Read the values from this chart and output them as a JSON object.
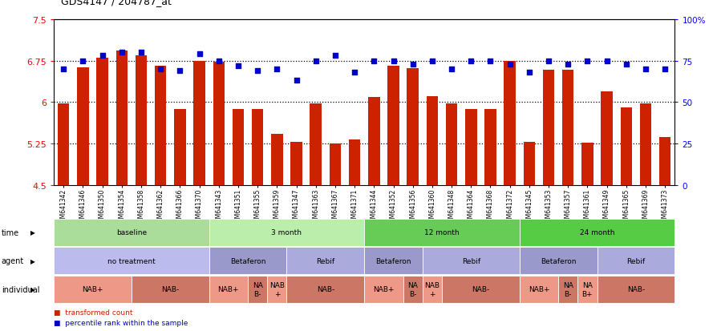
{
  "title": "GDS4147 / 204787_at",
  "samples": [
    "GSM641342",
    "GSM641346",
    "GSM641350",
    "GSM641354",
    "GSM641358",
    "GSM641362",
    "GSM641366",
    "GSM641370",
    "GSM641343",
    "GSM641351",
    "GSM641355",
    "GSM641359",
    "GSM641347",
    "GSM641363",
    "GSM641367",
    "GSM641371",
    "GSM641344",
    "GSM641352",
    "GSM641356",
    "GSM641360",
    "GSM641348",
    "GSM641364",
    "GSM641368",
    "GSM641372",
    "GSM641345",
    "GSM641353",
    "GSM641357",
    "GSM641361",
    "GSM641349",
    "GSM641365",
    "GSM641369",
    "GSM641373"
  ],
  "bar_values": [
    5.98,
    6.63,
    6.8,
    6.93,
    6.85,
    6.65,
    5.87,
    6.74,
    6.73,
    5.87,
    5.87,
    5.42,
    5.28,
    5.98,
    5.25,
    5.32,
    6.09,
    6.65,
    6.62,
    6.1,
    5.97,
    5.87,
    5.87,
    6.74,
    5.28,
    6.58,
    6.58,
    5.27,
    6.2,
    5.9,
    5.98,
    5.37
  ],
  "percentile_values": [
    70,
    75,
    78,
    80,
    80,
    70,
    69,
    79,
    75,
    72,
    69,
    70,
    63,
    75,
    78,
    68,
    75,
    75,
    73,
    75,
    70,
    75,
    75,
    73,
    68,
    75,
    73,
    75,
    75,
    73,
    70,
    70
  ],
  "ylim_left": [
    4.5,
    7.5
  ],
  "ylim_right": [
    0,
    100
  ],
  "yticks_left": [
    4.5,
    5.25,
    6.0,
    6.75,
    7.5
  ],
  "ytick_labels_left": [
    "4.5",
    "5.25",
    "6",
    "6.75",
    "7.5"
  ],
  "yticks_right": [
    0,
    25,
    50,
    75,
    100
  ],
  "ytick_labels_right": [
    "0",
    "25",
    "50",
    "75",
    "100%"
  ],
  "bar_color": "#cc2200",
  "dot_color": "#0000cc",
  "time_row": {
    "label": "time",
    "sections": [
      {
        "text": "baseline",
        "start": 0,
        "end": 8,
        "color": "#aadd99"
      },
      {
        "text": "3 month",
        "start": 8,
        "end": 16,
        "color": "#bbeeaa"
      },
      {
        "text": "12 month",
        "start": 16,
        "end": 24,
        "color": "#66cc55"
      },
      {
        "text": "24 month",
        "start": 24,
        "end": 32,
        "color": "#55cc44"
      }
    ]
  },
  "agent_row": {
    "label": "agent",
    "sections": [
      {
        "text": "no treatment",
        "start": 0,
        "end": 8,
        "color": "#bbbbee"
      },
      {
        "text": "Betaferon",
        "start": 8,
        "end": 12,
        "color": "#9999cc"
      },
      {
        "text": "Rebif",
        "start": 12,
        "end": 16,
        "color": "#aaaadd"
      },
      {
        "text": "Betaferon",
        "start": 16,
        "end": 19,
        "color": "#9999cc"
      },
      {
        "text": "Rebif",
        "start": 19,
        "end": 24,
        "color": "#aaaadd"
      },
      {
        "text": "Betaferon",
        "start": 24,
        "end": 28,
        "color": "#9999cc"
      },
      {
        "text": "Rebif",
        "start": 28,
        "end": 32,
        "color": "#aaaadd"
      }
    ]
  },
  "individual_row": {
    "label": "individual",
    "sections": [
      {
        "text": "NAB+",
        "start": 0,
        "end": 4,
        "color": "#ee9988"
      },
      {
        "text": "NAB-",
        "start": 4,
        "end": 8,
        "color": "#cc7766"
      },
      {
        "text": "NAB+",
        "start": 8,
        "end": 10,
        "color": "#ee9988"
      },
      {
        "text": "NA\nB-",
        "start": 10,
        "end": 11,
        "color": "#cc7766"
      },
      {
        "text": "NAB\n+",
        "start": 11,
        "end": 12,
        "color": "#ee9988"
      },
      {
        "text": "NAB-",
        "start": 12,
        "end": 16,
        "color": "#cc7766"
      },
      {
        "text": "NAB+",
        "start": 16,
        "end": 18,
        "color": "#ee9988"
      },
      {
        "text": "NA\nB-",
        "start": 18,
        "end": 19,
        "color": "#cc7766"
      },
      {
        "text": "NAB\n+",
        "start": 19,
        "end": 20,
        "color": "#ee9988"
      },
      {
        "text": "NAB-",
        "start": 20,
        "end": 24,
        "color": "#cc7766"
      },
      {
        "text": "NAB+",
        "start": 24,
        "end": 26,
        "color": "#ee9988"
      },
      {
        "text": "NA\nB-",
        "start": 26,
        "end": 27,
        "color": "#cc7766"
      },
      {
        "text": "NA\nB+",
        "start": 27,
        "end": 28,
        "color": "#ee9988"
      },
      {
        "text": "NAB-",
        "start": 28,
        "end": 32,
        "color": "#cc7766"
      }
    ]
  }
}
